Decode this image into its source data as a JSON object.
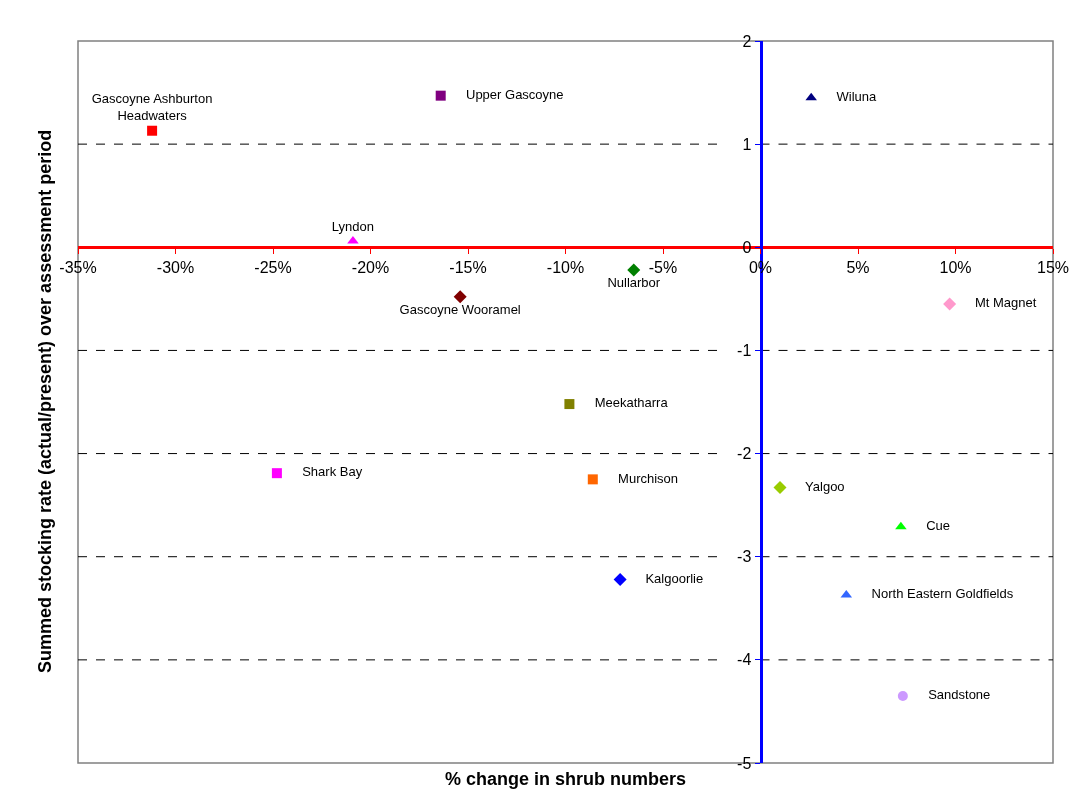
{
  "chart_data": {
    "type": "scatter",
    "xlabel": "% change in shrub numbers",
    "ylabel": "Summed stocking rate (actual/present) over assessment period",
    "xlim": [
      -35,
      15
    ],
    "xticks": [
      {
        "value": -35,
        "label": "-35%"
      },
      {
        "value": -30,
        "label": "-30%"
      },
      {
        "value": -25,
        "label": "-25%"
      },
      {
        "value": -20,
        "label": "-20%"
      },
      {
        "value": -15,
        "label": "-15%"
      },
      {
        "value": -10,
        "label": "-10%"
      },
      {
        "value": -5,
        "label": "-5%"
      },
      {
        "value": 0,
        "label": "0%"
      },
      {
        "value": 5,
        "label": "5%"
      },
      {
        "value": 10,
        "label": "10%"
      },
      {
        "value": 15,
        "label": "15%"
      }
    ],
    "ylim": [
      -5,
      2
    ],
    "yticks": [
      -5,
      -4,
      -3,
      -2,
      -1,
      0,
      1,
      2
    ],
    "grid": "y",
    "legend": false,
    "series": [
      {
        "name": "Upper Gascoyne",
        "color": "#800080",
        "marker": "square",
        "x": [
          -16.4
        ],
        "values": [
          1.47
        ]
      },
      {
        "name": "Wiluna",
        "color": "#000080",
        "marker": "triangle",
        "x": [
          2.6
        ],
        "values": [
          1.45
        ]
      },
      {
        "name": "Gascoyne Ashburton\nHeadwaters",
        "color": "#ff0000",
        "marker": "square",
        "x": [
          -31.2
        ],
        "values": [
          1.13
        ]
      },
      {
        "name": "Lyndon",
        "color": "#ff00ff",
        "marker": "triangle",
        "x": [
          -20.9
        ],
        "values": [
          0.06
        ]
      },
      {
        "name": "Nullarbor",
        "color": "#008000",
        "marker": "diamond",
        "x": [
          -6.5
        ],
        "values": [
          -0.22
        ]
      },
      {
        "name": "Gascoyne Wooramel",
        "color": "#800000",
        "marker": "diamond",
        "x": [
          -15.4
        ],
        "values": [
          -0.48
        ]
      },
      {
        "name": "Mt Magnet",
        "color": "#ff99cc",
        "marker": "diamond",
        "x": [
          9.7
        ],
        "values": [
          -0.55
        ]
      },
      {
        "name": "Meekatharra",
        "color": "#808000",
        "marker": "square",
        "x": [
          -9.8
        ],
        "values": [
          -1.52
        ]
      },
      {
        "name": "Shark Bay",
        "color": "#ff00ff",
        "marker": "square",
        "x": [
          -24.8
        ],
        "values": [
          -2.19
        ]
      },
      {
        "name": "Murchison",
        "color": "#ff6600",
        "marker": "square",
        "x": [
          -8.6
        ],
        "values": [
          -2.25
        ]
      },
      {
        "name": "Yalgoo",
        "color": "#99cc00",
        "marker": "diamond",
        "x": [
          1.0
        ],
        "values": [
          -2.33
        ]
      },
      {
        "name": "Cue",
        "color": "#00ff00",
        "marker": "triangle",
        "x": [
          7.2
        ],
        "values": [
          -2.71
        ]
      },
      {
        "name": "Kalgoorlie",
        "color": "#0000ff",
        "marker": "diamond",
        "x": [
          -7.2
        ],
        "values": [
          -3.22
        ]
      },
      {
        "name": "North Eastern Goldfields",
        "color": "#3366ff",
        "marker": "triangle",
        "x": [
          4.4
        ],
        "values": [
          -3.37
        ]
      },
      {
        "name": "Sandstone",
        "color": "#cc99ff",
        "marker": "circle",
        "x": [
          7.3
        ],
        "values": [
          -4.35
        ]
      }
    ]
  }
}
